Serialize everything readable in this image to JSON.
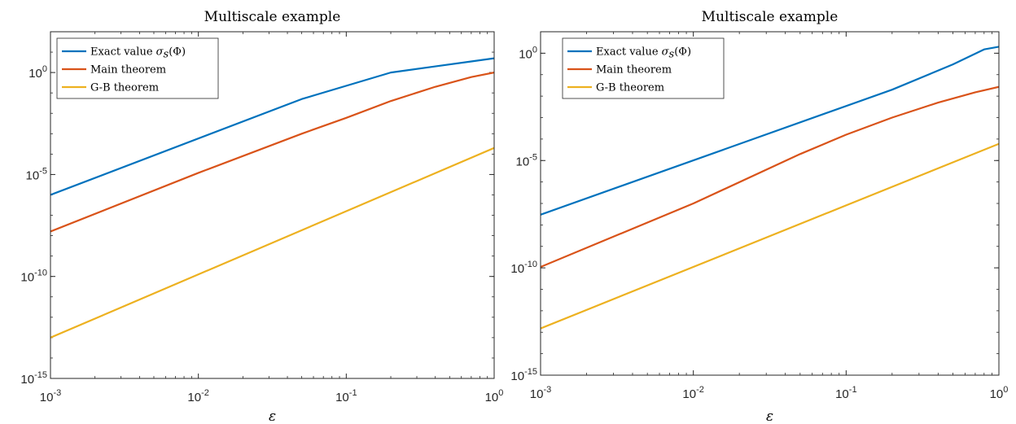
{
  "chart_data": [
    {
      "type": "line",
      "title": "Multiscale example",
      "xlabel": "ε",
      "ylabel": "",
      "xscale": "log",
      "yscale": "log",
      "xlim": [
        0.001,
        1
      ],
      "ylim": [
        1e-15,
        100
      ],
      "xticks": [
        0.001,
        0.01,
        0.1,
        1
      ],
      "xtick_labels": [
        {
          "base": "10",
          "exp": "-3"
        },
        {
          "base": "10",
          "exp": "-2"
        },
        {
          "base": "10",
          "exp": "-1"
        },
        {
          "base": "10",
          "exp": "0"
        }
      ],
      "yticks": [
        1e-15,
        1e-10,
        1e-05,
        1
      ],
      "ytick_labels": [
        {
          "base": "10",
          "exp": "-15"
        },
        {
          "base": "10",
          "exp": "-10"
        },
        {
          "base": "10",
          "exp": "-5"
        },
        {
          "base": "10",
          "exp": "0"
        }
      ],
      "legend_position": "top-left",
      "series": [
        {
          "name": "Exact value σs(Φ)",
          "legend": {
            "pre": "Exact value ",
            "math": "σ",
            "sub": "s",
            "post": "(Φ)"
          },
          "color": "#0072BD",
          "x": [
            0.001,
            0.05,
            0.2,
            0.4,
            0.7,
            1
          ],
          "y": [
            1e-06,
            0.05,
            1.0,
            2.0,
            3.5,
            5.0
          ]
        },
        {
          "name": "Main theorem",
          "legend": {
            "pre": "Main theorem"
          },
          "color": "#D95319",
          "x": [
            0.001,
            0.01,
            0.05,
            0.1,
            0.2,
            0.4,
            0.7,
            1
          ],
          "y": [
            1.6e-08,
            1.2e-05,
            0.001,
            0.006,
            0.04,
            0.2,
            0.6,
            1.0
          ]
        },
        {
          "name": "G-B theorem",
          "legend": {
            "pre": "G-B theorem"
          },
          "color": "#EDB120",
          "x": [
            0.001,
            1
          ],
          "y": [
            1e-13,
            0.0002
          ]
        }
      ]
    },
    {
      "type": "line",
      "title": "Multiscale example",
      "xlabel": "ε",
      "ylabel": "",
      "xscale": "log",
      "yscale": "log",
      "xlim": [
        0.001,
        1
      ],
      "ylim": [
        1e-15,
        10
      ],
      "xticks": [
        0.001,
        0.01,
        0.1,
        1
      ],
      "xtick_labels": [
        {
          "base": "10",
          "exp": "-3"
        },
        {
          "base": "10",
          "exp": "-2"
        },
        {
          "base": "10",
          "exp": "-1"
        },
        {
          "base": "10",
          "exp": "0"
        }
      ],
      "yticks": [
        1e-15,
        1e-10,
        1e-05,
        1
      ],
      "ytick_labels": [
        {
          "base": "10",
          "exp": "-15"
        },
        {
          "base": "10",
          "exp": "-10"
        },
        {
          "base": "10",
          "exp": "-5"
        },
        {
          "base": "10",
          "exp": "0"
        }
      ],
      "legend_position": "top-left",
      "series": [
        {
          "name": "Exact value σs(Φ)",
          "legend": {
            "pre": "Exact value ",
            "math": "σ",
            "sub": "s",
            "post": "(Φ)"
          },
          "color": "#0072BD",
          "x": [
            0.001,
            0.2,
            0.5,
            0.8,
            1
          ],
          "y": [
            3e-08,
            0.02,
            0.3,
            1.5,
            2.0
          ]
        },
        {
          "name": "Main theorem",
          "legend": {
            "pre": "Main theorem"
          },
          "color": "#D95319",
          "x": [
            0.001,
            0.01,
            0.05,
            0.1,
            0.2,
            0.4,
            0.7,
            1
          ],
          "y": [
            1.1e-10,
            1e-07,
            2e-05,
            0.00016,
            0.001,
            0.005,
            0.015,
            0.027
          ]
        },
        {
          "name": "G-B theorem",
          "legend": {
            "pre": "G-B theorem"
          },
          "color": "#EDB120",
          "x": [
            0.001,
            1
          ],
          "y": [
            1.5e-13,
            6e-05
          ]
        }
      ]
    }
  ]
}
